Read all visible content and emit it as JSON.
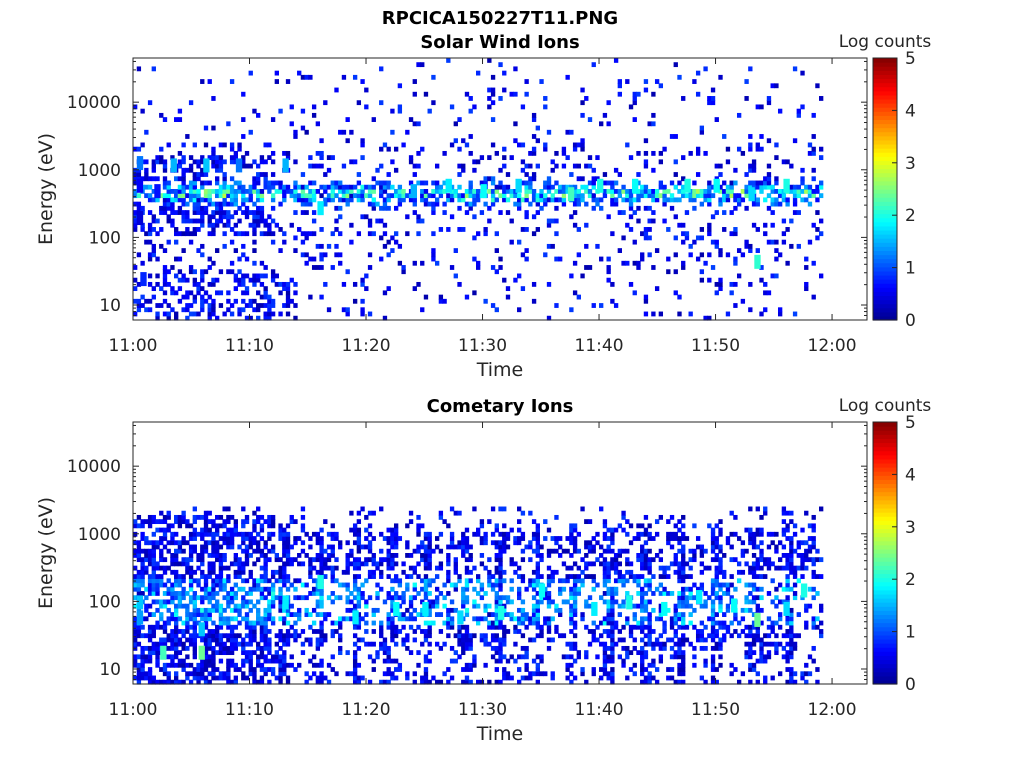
{
  "figure": {
    "title": "RPCICA150227T11.PNG"
  },
  "colormap": [
    "#00008f",
    "#0000ff",
    "#0080ff",
    "#00ffff",
    "#80ff80",
    "#ffff00",
    "#ff8000",
    "#ff0000",
    "#800000"
  ],
  "chart_data": [
    {
      "type": "heatmap",
      "title": "Solar Wind Ions",
      "xlabel": "Time",
      "ylabel": "Energy (eV)",
      "xticks": [
        "11:00",
        "11:10",
        "11:20",
        "11:30",
        "11:40",
        "11:50",
        "12:00"
      ],
      "xlim_minutes": [
        0,
        63
      ],
      "yscale": "log",
      "ylim": [
        6,
        45000
      ],
      "yticks": [
        {
          "label": "10",
          "value": 10
        },
        {
          "label": "100",
          "value": 100
        },
        {
          "label": "1000",
          "value": 1000
        },
        {
          "label": "10000",
          "value": 10000
        }
      ],
      "colorbar": {
        "label": "Log counts",
        "ticks": [
          "0",
          "1",
          "2",
          "3",
          "4",
          "5"
        ],
        "range": [
          0,
          5
        ]
      },
      "data_minutes": [
        0,
        59
      ],
      "peak_energy_eV": 450,
      "typical_peak_log_counts": 2.0,
      "cells": [
        {
          "t": 0.5,
          "e": 600,
          "v": 0.6
        },
        {
          "t": 0.5,
          "e": 1300,
          "v": 1.2
        },
        {
          "t": 0.5,
          "e": 200,
          "v": 0.4
        },
        {
          "t": 0.8,
          "e": 25,
          "v": 0.8
        },
        {
          "t": 2.0,
          "e": 500,
          "v": 0.7
        },
        {
          "t": 3.4,
          "e": 1200,
          "v": 1.5
        },
        {
          "t": 6.2,
          "e": 1200,
          "v": 1.6
        },
        {
          "t": 9.0,
          "e": 1200,
          "v": 1.2
        },
        {
          "t": 13.0,
          "e": 1200,
          "v": 1.5
        },
        {
          "t": 16.0,
          "e": 280,
          "v": 1.8
        },
        {
          "t": 24.0,
          "e": 500,
          "v": 1.5
        },
        {
          "t": 27.0,
          "e": 600,
          "v": 1.8
        },
        {
          "t": 30.0,
          "e": 500,
          "v": 1.9
        },
        {
          "t": 33.0,
          "e": 600,
          "v": 1.7
        },
        {
          "t": 37.5,
          "e": 450,
          "v": 2.2
        },
        {
          "t": 40.0,
          "e": 600,
          "v": 2.0
        },
        {
          "t": 43.0,
          "e": 600,
          "v": 1.9
        },
        {
          "t": 47.5,
          "e": 600,
          "v": 2.0
        },
        {
          "t": 50.0,
          "e": 600,
          "v": 1.9
        },
        {
          "t": 53.0,
          "e": 450,
          "v": 1.7
        },
        {
          "t": 56.0,
          "e": 600,
          "v": 2.0
        },
        {
          "t": 53.5,
          "e": 45,
          "v": 2.1
        }
      ]
    },
    {
      "type": "heatmap",
      "title": "Cometary Ions",
      "xlabel": "Time",
      "ylabel": "Energy (eV)",
      "xticks": [
        "11:00",
        "11:10",
        "11:20",
        "11:30",
        "11:40",
        "11:50",
        "12:00"
      ],
      "xlim_minutes": [
        0,
        63
      ],
      "yscale": "log",
      "ylim": [
        6,
        45000
      ],
      "yticks": [
        {
          "label": "10",
          "value": 10
        },
        {
          "label": "100",
          "value": 100
        },
        {
          "label": "1000",
          "value": 1000
        },
        {
          "label": "10000",
          "value": 10000
        }
      ],
      "colorbar": {
        "label": "Log counts",
        "ticks": [
          "0",
          "1",
          "2",
          "3",
          "4",
          "5"
        ],
        "range": [
          0,
          5
        ]
      },
      "data_minutes": [
        0,
        59
      ],
      "cells": [
        {
          "t": 0.5,
          "e": 100,
          "v": 1.6
        },
        {
          "t": 0.5,
          "e": 60,
          "v": 1.4
        },
        {
          "t": 2.5,
          "e": 18,
          "v": 2.2
        },
        {
          "t": 5.8,
          "e": 18,
          "v": 2.4
        },
        {
          "t": 5.8,
          "e": 40,
          "v": 1.6
        },
        {
          "t": 13.0,
          "e": 100,
          "v": 1.8
        },
        {
          "t": 16.0,
          "e": 200,
          "v": 2.0
        },
        {
          "t": 19.0,
          "e": 60,
          "v": 1.8
        },
        {
          "t": 22.5,
          "e": 80,
          "v": 1.9
        },
        {
          "t": 25.0,
          "e": 80,
          "v": 1.8
        },
        {
          "t": 28.0,
          "e": 60,
          "v": 1.7
        },
        {
          "t": 31.5,
          "e": 70,
          "v": 2.0
        },
        {
          "t": 35.0,
          "e": 150,
          "v": 1.9
        },
        {
          "t": 39.5,
          "e": 80,
          "v": 1.8
        },
        {
          "t": 42.5,
          "e": 100,
          "v": 2.0
        },
        {
          "t": 45.5,
          "e": 80,
          "v": 1.9
        },
        {
          "t": 48.5,
          "e": 120,
          "v": 1.8
        },
        {
          "t": 51.5,
          "e": 90,
          "v": 1.9
        },
        {
          "t": 53.5,
          "e": 55,
          "v": 2.4
        },
        {
          "t": 56.0,
          "e": 80,
          "v": 1.7
        },
        {
          "t": 57.5,
          "e": 150,
          "v": 2.0
        }
      ]
    }
  ]
}
